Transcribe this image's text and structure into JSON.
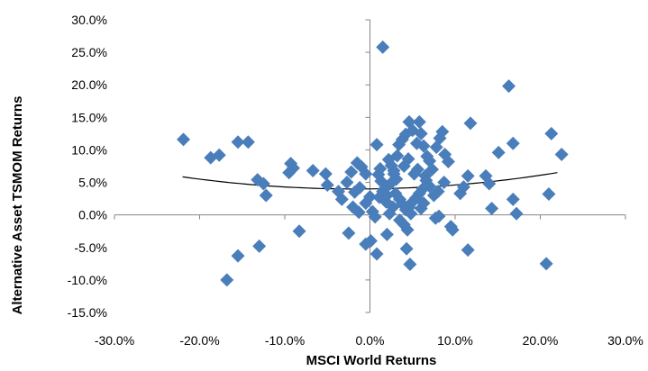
{
  "chart_data": {
    "type": "scatter",
    "xlabel": "MSCI World Returns",
    "ylabel": "Alternative  Asset TSMOM Returns",
    "xlim": [
      -0.3,
      0.3
    ],
    "ylim": [
      -0.15,
      0.3
    ],
    "x_ticks": [
      "-30.0%",
      "-20.0%",
      "-10.0%",
      "0.0%",
      "10.0%",
      "20.0%",
      "30.0%"
    ],
    "y_ticks": [
      "30.0%",
      "25.0%",
      "20.0%",
      "15.0%",
      "10.0%",
      "5.0%",
      "0.0%",
      "-5.0%",
      "-10.0%",
      "-15.0%"
    ],
    "grid": false,
    "legend": "none",
    "marker": "diamond",
    "marker_color": "#4a7ebb",
    "trendline": {
      "type": "quadratic",
      "color": "#000000",
      "coefficients": [
        0.04,
        0.015,
        0.45
      ],
      "x_range": [
        -0.22,
        0.22
      ]
    },
    "points": [
      {
        "x": 0.015,
        "y": 0.258
      },
      {
        "x": 0.163,
        "y": 0.198
      },
      {
        "x": -0.219,
        "y": 0.116
      },
      {
        "x": -0.155,
        "y": 0.112
      },
      {
        "x": -0.143,
        "y": 0.112
      },
      {
        "x": -0.177,
        "y": 0.092
      },
      {
        "x": -0.187,
        "y": 0.088
      },
      {
        "x": 0.213,
        "y": 0.125
      },
      {
        "x": 0.168,
        "y": 0.11
      },
      {
        "x": 0.225,
        "y": 0.093
      },
      {
        "x": 0.151,
        "y": 0.096
      },
      {
        "x": 0.118,
        "y": 0.141
      },
      {
        "x": 0.136,
        "y": 0.06
      },
      {
        "x": 0.14,
        "y": 0.048
      },
      {
        "x": 0.115,
        "y": 0.06
      },
      {
        "x": 0.168,
        "y": 0.024
      },
      {
        "x": 0.21,
        "y": 0.032
      },
      {
        "x": 0.143,
        "y": 0.01
      },
      {
        "x": 0.172,
        "y": 0.002
      },
      {
        "x": 0.115,
        "y": -0.054
      },
      {
        "x": 0.207,
        "y": -0.075
      },
      {
        "x": -0.132,
        "y": 0.054
      },
      {
        "x": -0.125,
        "y": 0.048
      },
      {
        "x": -0.122,
        "y": 0.03
      },
      {
        "x": -0.093,
        "y": 0.079
      },
      {
        "x": -0.09,
        "y": 0.072
      },
      {
        "x": -0.095,
        "y": 0.065
      },
      {
        "x": -0.067,
        "y": 0.068
      },
      {
        "x": -0.052,
        "y": 0.063
      },
      {
        "x": -0.05,
        "y": 0.046
      },
      {
        "x": -0.037,
        "y": 0.036
      },
      {
        "x": -0.033,
        "y": 0.024
      },
      {
        "x": -0.027,
        "y": 0.05
      },
      {
        "x": -0.022,
        "y": 0.066
      },
      {
        "x": -0.015,
        "y": 0.08
      },
      {
        "x": -0.01,
        "y": 0.074
      },
      {
        "x": -0.005,
        "y": 0.063
      },
      {
        "x": -0.012,
        "y": 0.042
      },
      {
        "x": -0.018,
        "y": 0.035
      },
      {
        "x": -0.02,
        "y": 0.012
      },
      {
        "x": -0.013,
        "y": 0.004
      },
      {
        "x": -0.005,
        "y": 0.018
      },
      {
        "x": 0.0,
        "y": 0.028
      },
      {
        "x": 0.003,
        "y": 0.005
      },
      {
        "x": 0.006,
        "y": -0.003
      },
      {
        "x": -0.005,
        "y": -0.045
      },
      {
        "x": 0.001,
        "y": -0.04
      },
      {
        "x": 0.008,
        "y": -0.06
      },
      {
        "x": -0.025,
        "y": -0.028
      },
      {
        "x": -0.083,
        "y": -0.025
      },
      {
        "x": -0.13,
        "y": -0.048
      },
      {
        "x": -0.155,
        "y": -0.063
      },
      {
        "x": -0.168,
        "y": -0.1
      },
      {
        "x": 0.008,
        "y": 0.108
      },
      {
        "x": 0.01,
        "y": 0.062
      },
      {
        "x": 0.013,
        "y": 0.052
      },
      {
        "x": 0.017,
        "y": 0.04
      },
      {
        "x": 0.02,
        "y": 0.03
      },
      {
        "x": 0.022,
        "y": 0.085
      },
      {
        "x": 0.025,
        "y": 0.076
      },
      {
        "x": 0.028,
        "y": 0.068
      },
      {
        "x": 0.031,
        "y": 0.055
      },
      {
        "x": 0.034,
        "y": 0.108
      },
      {
        "x": 0.038,
        "y": 0.116
      },
      {
        "x": 0.042,
        "y": 0.124
      },
      {
        "x": 0.046,
        "y": 0.143
      },
      {
        "x": 0.05,
        "y": 0.13
      },
      {
        "x": 0.055,
        "y": 0.11
      },
      {
        "x": 0.058,
        "y": 0.143
      },
      {
        "x": 0.06,
        "y": 0.125
      },
      {
        "x": 0.063,
        "y": 0.106
      },
      {
        "x": 0.067,
        "y": 0.09
      },
      {
        "x": 0.07,
        "y": 0.083
      },
      {
        "x": 0.073,
        "y": 0.07
      },
      {
        "x": 0.078,
        "y": 0.104
      },
      {
        "x": 0.082,
        "y": 0.118
      },
      {
        "x": 0.085,
        "y": 0.128
      },
      {
        "x": 0.088,
        "y": 0.093
      },
      {
        "x": 0.092,
        "y": 0.082
      },
      {
        "x": 0.087,
        "y": 0.05
      },
      {
        "x": 0.08,
        "y": 0.036
      },
      {
        "x": 0.075,
        "y": 0.03
      },
      {
        "x": 0.07,
        "y": 0.044
      },
      {
        "x": 0.066,
        "y": 0.053
      },
      {
        "x": 0.062,
        "y": 0.04
      },
      {
        "x": 0.058,
        "y": 0.033
      },
      {
        "x": 0.054,
        "y": 0.026
      },
      {
        "x": 0.05,
        "y": 0.02
      },
      {
        "x": 0.046,
        "y": 0.012
      },
      {
        "x": 0.042,
        "y": 0.008
      },
      {
        "x": 0.038,
        "y": 0.017
      },
      {
        "x": 0.035,
        "y": 0.024
      },
      {
        "x": 0.03,
        "y": 0.033
      },
      {
        "x": 0.027,
        "y": 0.012
      },
      {
        "x": 0.023,
        "y": 0.002
      },
      {
        "x": 0.019,
        "y": 0.02
      },
      {
        "x": 0.015,
        "y": 0.036
      },
      {
        "x": 0.011,
        "y": 0.027
      },
      {
        "x": 0.035,
        "y": -0.008
      },
      {
        "x": 0.04,
        "y": -0.015
      },
      {
        "x": 0.044,
        "y": -0.023
      },
      {
        "x": 0.048,
        "y": 0.002
      },
      {
        "x": 0.052,
        "y": 0.063
      },
      {
        "x": 0.056,
        "y": 0.07
      },
      {
        "x": 0.04,
        "y": 0.075
      },
      {
        "x": 0.045,
        "y": 0.086
      },
      {
        "x": 0.032,
        "y": 0.091
      },
      {
        "x": 0.028,
        "y": 0.063
      },
      {
        "x": 0.06,
        "y": 0.01
      },
      {
        "x": 0.063,
        "y": 0.018
      },
      {
        "x": 0.077,
        "y": -0.005
      },
      {
        "x": 0.081,
        "y": -0.002
      },
      {
        "x": 0.095,
        "y": -0.018
      },
      {
        "x": 0.097,
        "y": -0.023
      },
      {
        "x": 0.106,
        "y": 0.033
      },
      {
        "x": 0.11,
        "y": 0.043
      },
      {
        "x": 0.043,
        "y": -0.052
      },
      {
        "x": 0.047,
        "y": -0.076
      },
      {
        "x": 0.02,
        "y": -0.03
      },
      {
        "x": 0.024,
        "y": 0.048
      },
      {
        "x": 0.012,
        "y": 0.071
      },
      {
        "x": 0.065,
        "y": 0.06
      }
    ]
  }
}
